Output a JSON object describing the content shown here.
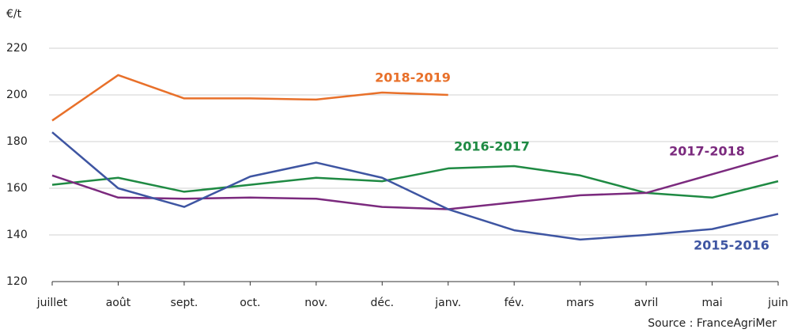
{
  "chart_data": {
    "type": "line",
    "y_label": "€/t",
    "source": "Source : FranceAgriMer",
    "categories": [
      "juillet",
      "août",
      "sept.",
      "oct.",
      "nov.",
      "déc.",
      "janv.",
      "fév.",
      "mars",
      "avril",
      "mai",
      "juin"
    ],
    "series": [
      {
        "name": "2018-2019",
        "color": "#e8702a",
        "values": [
          189,
          208.5,
          198.5,
          198.5,
          198,
          201,
          200,
          null,
          null,
          null,
          null,
          null
        ]
      },
      {
        "name": "2016-2017",
        "color": "#1f8a43",
        "values": [
          161.5,
          164.5,
          158.5,
          161.5,
          164.5,
          163,
          168.5,
          169.5,
          165.5,
          158,
          156,
          163
        ]
      },
      {
        "name": "2017-2018",
        "color": "#7b2a7e",
        "values": [
          165.5,
          156,
          155.5,
          156,
          155.5,
          152,
          151,
          154,
          157,
          158,
          166,
          174
        ]
      },
      {
        "name": "2015-2016",
        "color": "#3e55a2",
        "values": [
          184,
          160,
          152,
          165,
          171,
          164.5,
          151,
          142,
          138,
          140,
          142.5,
          149
        ]
      }
    ],
    "ylim": [
      120,
      220
    ],
    "yticks": [
      120,
      140,
      160,
      180,
      200,
      220
    ],
    "grid": true
  }
}
